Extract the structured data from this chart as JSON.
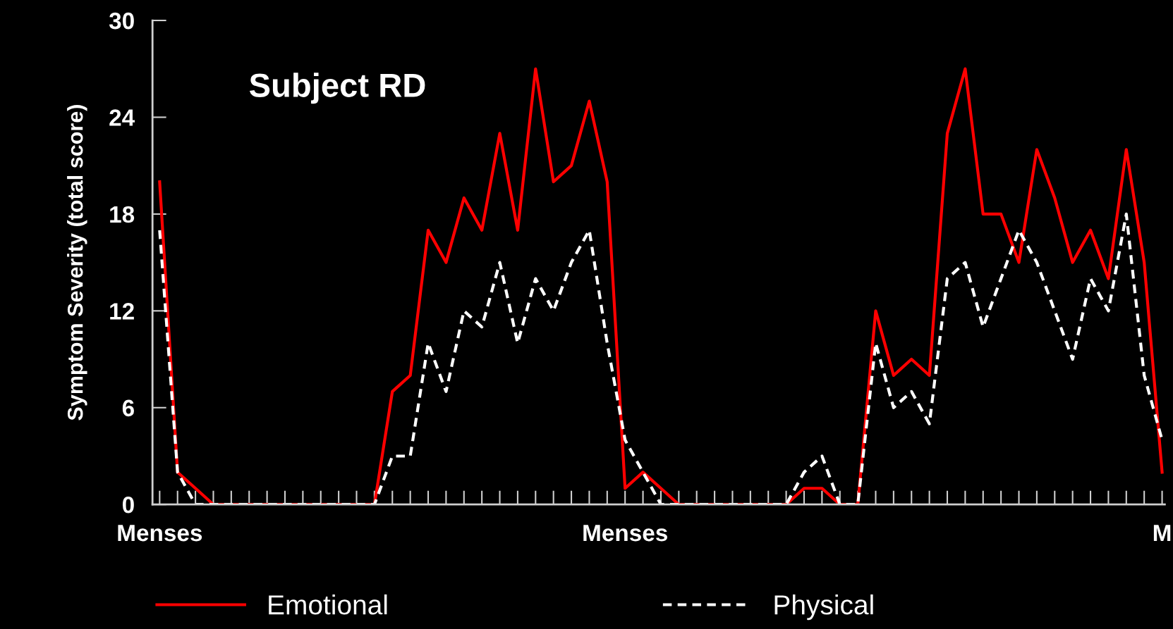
{
  "chart_data": {
    "type": "line",
    "title": "Subject RD",
    "ylabel": "Symptom Severity (total score)",
    "categories": [
      "Menses",
      null,
      null,
      null,
      null,
      null,
      null,
      null,
      null,
      null,
      null,
      null,
      null,
      null,
      null,
      null,
      null,
      null,
      null,
      null,
      null,
      null,
      null,
      null,
      null,
      null,
      "Menses",
      null,
      null,
      null,
      null,
      null,
      null,
      null,
      null,
      null,
      null,
      null,
      null,
      null,
      null,
      null,
      null,
      null,
      null,
      null,
      null,
      null,
      null,
      null,
      null,
      null,
      null,
      null,
      null,
      null,
      "M"
    ],
    "series": [
      {
        "name": "Emotional",
        "color": "#ff0000",
        "line_style": "solid",
        "values": [
          20,
          2,
          1,
          0,
          0,
          0,
          0,
          0,
          0,
          0,
          0,
          0,
          0,
          7,
          8,
          17,
          15,
          19,
          17,
          23,
          17,
          27,
          20,
          21,
          25,
          20,
          1,
          2,
          1,
          0,
          0,
          0,
          0,
          0,
          0,
          0,
          1,
          1,
          0,
          0,
          12,
          8,
          9,
          8,
          23,
          27,
          18,
          18,
          15,
          22,
          19,
          15,
          17,
          14,
          22,
          15,
          2
        ]
      },
      {
        "name": "Physical",
        "color": "#ffffff",
        "line_style": "dashed",
        "values": [
          17,
          2,
          0,
          0,
          0,
          0,
          0,
          0,
          0,
          0,
          0,
          0,
          0,
          3,
          3,
          10,
          7,
          12,
          11,
          15,
          10,
          14,
          12,
          15,
          17,
          10,
          4,
          2,
          0,
          0,
          0,
          0,
          0,
          0,
          0,
          0,
          2,
          3,
          0,
          0,
          10,
          6,
          7,
          5,
          14,
          15,
          11,
          14,
          17,
          15,
          12,
          9,
          14,
          12,
          18,
          8,
          4
        ]
      }
    ],
    "ylim": [
      0,
      30
    ],
    "yticks": [
      0,
      6,
      12,
      18,
      24,
      30
    ],
    "grid": false,
    "legend": "bottom",
    "marker": "none"
  }
}
